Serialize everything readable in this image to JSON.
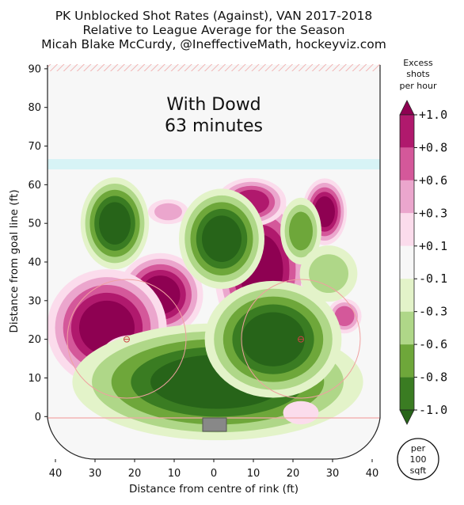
{
  "chart_data": {
    "type": "heatmap",
    "title": [
      "PK Unblocked Shot Rates (Against), VAN 2017-2018",
      "Relative to League Average for the Season",
      "Micah Blake McCurdy, @IneffectiveMath, hockeyviz.com"
    ],
    "xlabel": "Distance from centre of rink (ft)",
    "ylabel": "Distance from goal line (ft)",
    "xlim": [
      -42,
      42
    ],
    "ylim": [
      -11,
      91
    ],
    "x_ticks": [
      -40,
      -30,
      -20,
      -10,
      0,
      10,
      20,
      30,
      40
    ],
    "x_tick_labels": [
      "40",
      "30",
      "20",
      "10",
      "0",
      "10",
      "20",
      "30",
      "40"
    ],
    "y_ticks": [
      0,
      10,
      20,
      30,
      40,
      50,
      60,
      70,
      80,
      90
    ],
    "y_tick_labels": [
      "0",
      "10",
      "20",
      "30",
      "40",
      "50",
      "60",
      "70",
      "80",
      "90"
    ],
    "annotation": [
      "With Dowd",
      "63 minutes"
    ],
    "colorbar": {
      "title": [
        "Excess",
        "shots",
        "per hour"
      ],
      "tick_labels": [
        "+1.0",
        "+0.8",
        "+0.6",
        "+0.3",
        "+0.1",
        "-0.1",
        "-0.3",
        "-0.6",
        "-0.8",
        "-1.0"
      ],
      "bins": [
        {
          "color": "#8e0152",
          "label": ">= +1.0"
        },
        {
          "color": "#b0196d",
          "label": "+0.8 to +1.0"
        },
        {
          "color": "#d4589a",
          "label": "+0.6 to +0.8"
        },
        {
          "color": "#eba6cd",
          "label": "+0.3 to +0.6"
        },
        {
          "color": "#fbdcec",
          "label": "+0.1 to +0.3"
        },
        {
          "color": "#f7f7f7",
          "label": "-0.1 to +0.1"
        },
        {
          "color": "#e3f3c9",
          "label": "-0.3 to -0.1"
        },
        {
          "color": "#afd788",
          "label": "-0.6 to -0.3"
        },
        {
          "color": "#6ea73a",
          "label": "-0.8 to -0.6"
        },
        {
          "color": "#3a7c22",
          "label": "-1.0 to -0.8"
        },
        {
          "color": "#276419",
          "label": "<= -1.0"
        }
      ]
    },
    "unit_badge": [
      "per",
      "100",
      "sqft"
    ],
    "regions": [
      {
        "level": 1.0,
        "x": -13.5,
        "y": 31.5,
        "rx": 5.0,
        "ry": 5.0
      },
      {
        "level": 1.0,
        "x": -27,
        "y": 23,
        "rx": 7.0,
        "ry": 7.0
      },
      {
        "level": 1.0,
        "x": 12,
        "y": 38,
        "rx": 5.5,
        "ry": 9.0
      },
      {
        "level": 0.8,
        "x": 9.5,
        "y": 55.5,
        "rx": 4.5,
        "ry": 3.2
      },
      {
        "level": 1.0,
        "x": 28,
        "y": 53,
        "rx": 2.6,
        "ry": 4.0
      },
      {
        "level": 0.6,
        "x": 33,
        "y": 26,
        "rx": 2.5,
        "ry": 2.6
      },
      {
        "level": 0.3,
        "x": -11.5,
        "y": 53,
        "rx": 3.5,
        "ry": 2.2
      },
      {
        "level": 0.3,
        "x": -21,
        "y": 14.5,
        "rx": 5.5,
        "ry": 4.5
      },
      {
        "level": -1.0,
        "x": 1,
        "y": 9,
        "rx": 17.0,
        "ry": 7.0
      },
      {
        "level": -1.0,
        "x": 15,
        "y": 20,
        "rx": 8.0,
        "ry": 7.0
      },
      {
        "level": -1.0,
        "x": -25,
        "y": 50,
        "rx": 4.0,
        "ry": 5.5
      },
      {
        "level": -1.0,
        "x": 2,
        "y": 46,
        "rx": 5.0,
        "ry": 6.0
      },
      {
        "level": -0.6,
        "x": 22,
        "y": 48,
        "rx": 3.0,
        "ry": 5.0
      },
      {
        "level": -0.3,
        "x": 29,
        "y": 37,
        "rx": 5.0,
        "ry": 5.0
      },
      {
        "level": 0.1,
        "x": 22,
        "y": 1,
        "rx": 4.5,
        "ry": 3.0
      }
    ],
    "reference_marks": [
      {
        "name": "left-faceoff-dot",
        "x": -22,
        "y": 20
      },
      {
        "name": "right-faceoff-dot",
        "x": 22,
        "y": 20
      }
    ]
  }
}
